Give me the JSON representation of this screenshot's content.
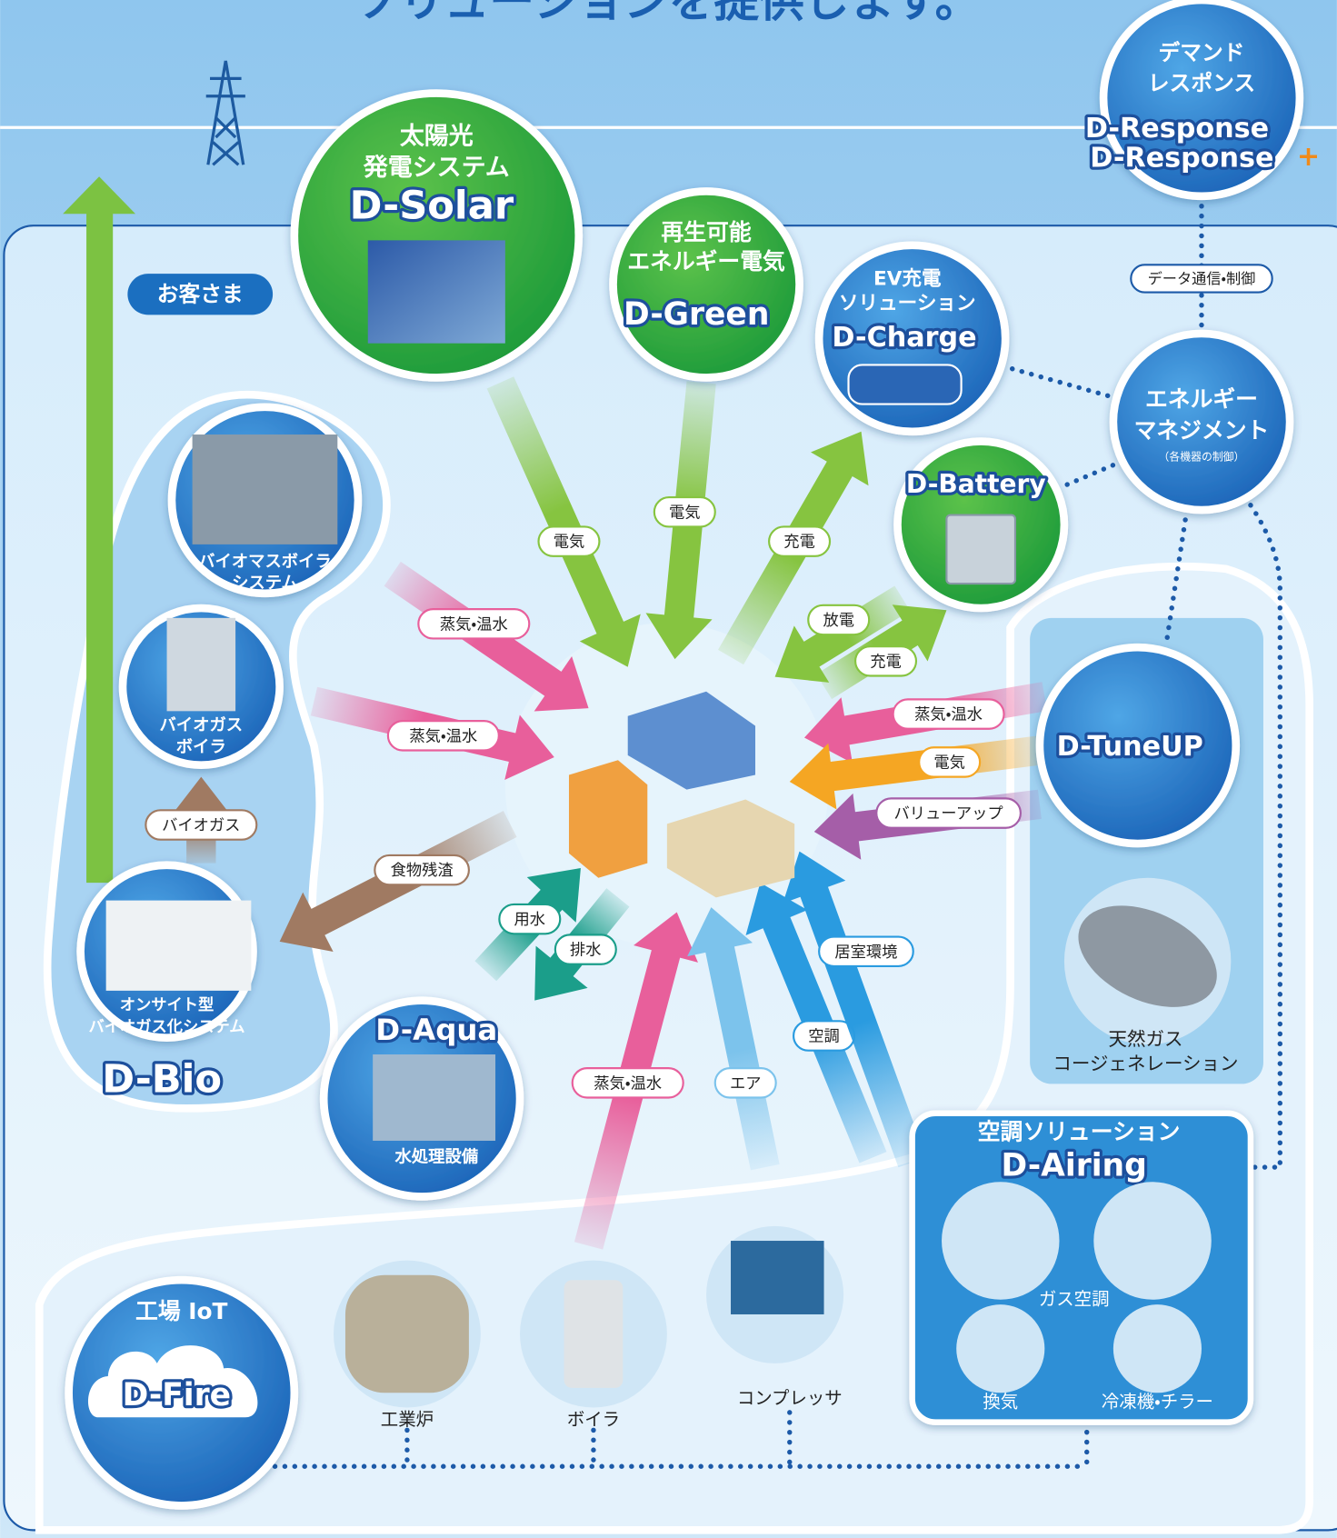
{
  "header": {
    "title": "ソリューションを提供します。"
  },
  "customer": "お客さま",
  "nodes": [
    {
      "lines": [
        "太陽光",
        "発電システム"
      ],
      "brand": "D-Solar"
    },
    {
      "lines": [
        "再生可能",
        "エネルギー電気"
      ],
      "brand": "D-Green"
    },
    {
      "lines": [
        "EV充電",
        "ソリューション"
      ],
      "brand": "D-Charge"
    },
    {
      "brand": "D-Battery"
    },
    {
      "lines": [
        "デマンド",
        "レスポンス"
      ],
      "brands": [
        "D-Response",
        "D-Response"
      ],
      "plus": "+"
    },
    {
      "lines": [
        "エネルギー",
        "マネジメント"
      ],
      "note": "（各機器の制御）"
    },
    {
      "brand": "D-TuneUP"
    },
    {
      "lines": [
        "天然ガス",
        "コージェネレーション"
      ]
    },
    {
      "lines": [
        "空調ソリューション"
      ],
      "brand": "D-Airing",
      "items": [
        "ガス空調",
        "換気",
        "冷凍機・チラー"
      ]
    },
    {
      "lines": [
        "工場 IoT"
      ],
      "brand": "D-Fire"
    },
    {
      "lines": [
        "工業炉"
      ]
    },
    {
      "lines": [
        "ボイラ"
      ]
    },
    {
      "lines": [
        "コンプレッサ"
      ]
    },
    {
      "brand": "D-Aqua",
      "lines": [
        "水処理設備"
      ]
    },
    {
      "lines": [
        "バイオマスボイラ",
        "システム"
      ]
    },
    {
      "lines": [
        "バイオガス",
        "ボイラ"
      ]
    },
    {
      "lines": [
        "オンサイト型",
        "バイオガス化システム"
      ]
    },
    {
      "brand": "D-Bio"
    }
  ],
  "flows": [
    "電気",
    "電気",
    "充電",
    "放電",
    "充電",
    "蒸気・温水",
    "蒸気・温水",
    "食物残渣",
    "バイオガス",
    "用水",
    "排水",
    "蒸気・温水",
    "エア",
    "空調",
    "居室環境",
    "蒸気・温水",
    "電気",
    "バリューアップ"
  ],
  "link_label": "データ通信・制御"
}
